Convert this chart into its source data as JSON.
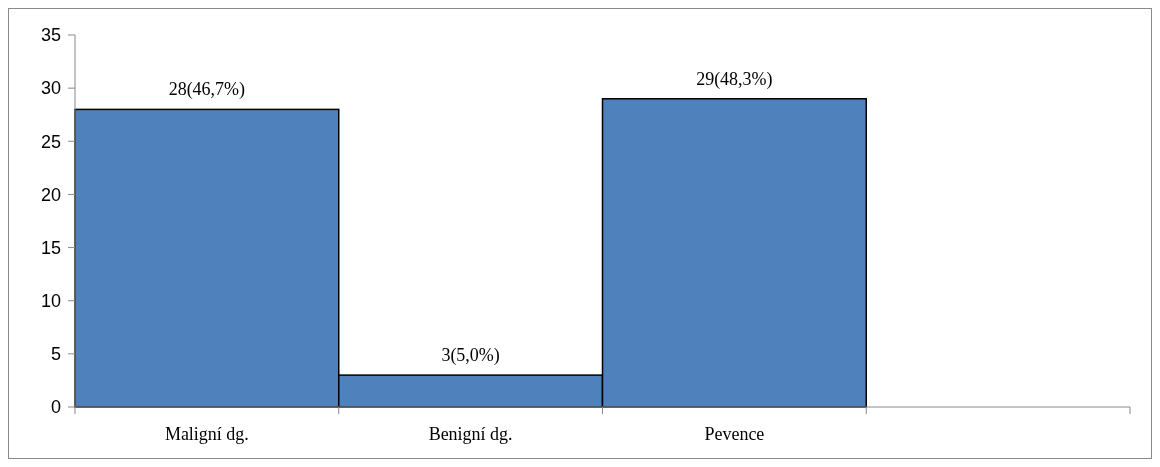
{
  "chart_data": {
    "type": "bar",
    "categories": [
      "Maligní dg.",
      "Benigní dg.",
      "Pevence",
      null
    ],
    "values": [
      28,
      3,
      29,
      null
    ],
    "value_labels": [
      "28(46,7%)",
      "3(5,0%)",
      "29(48,3%)",
      null
    ],
    "color": "#4f81bd",
    "ylim": [
      0,
      35
    ],
    "yticks": [
      0,
      5,
      10,
      15,
      20,
      25,
      30,
      35
    ],
    "grid": false
  }
}
